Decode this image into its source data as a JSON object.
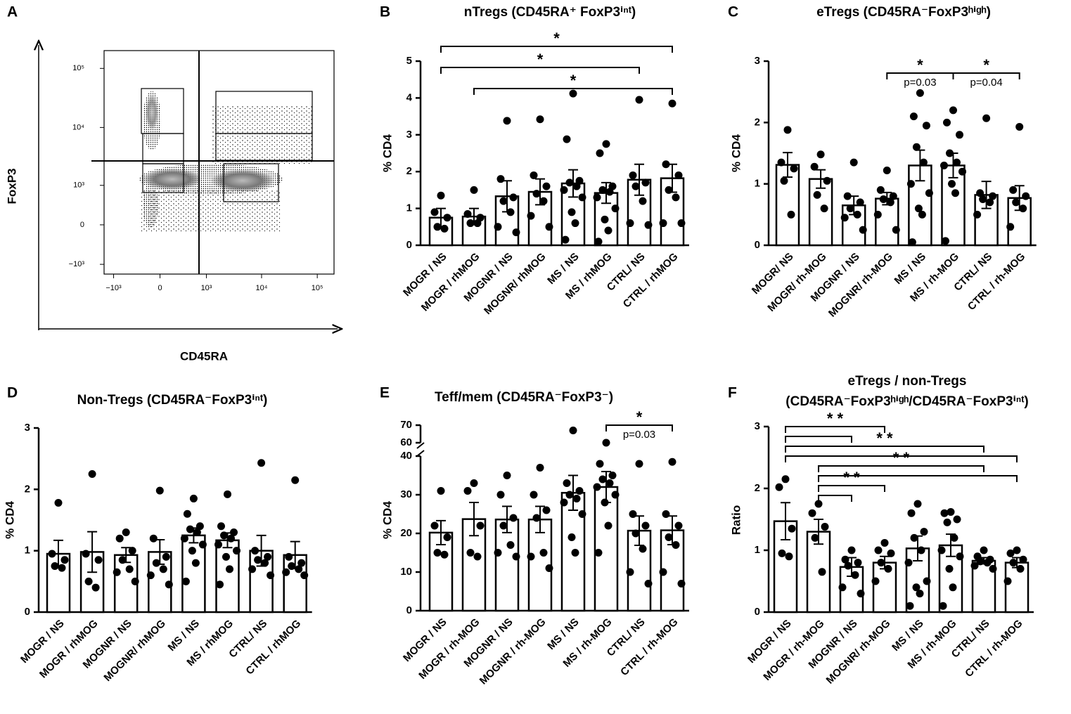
{
  "chart_data": [
    {
      "type": "density",
      "panel": "A",
      "xlabel": "CD45RA",
      "ylabel": "FoxP3",
      "xscale": "biexponential",
      "yscale": "biexponential",
      "xlim": [
        -1500,
        200000
      ],
      "ylim": [
        -1500,
        200000
      ],
      "xticks": [
        {
          "value": -1000,
          "label": "−10³"
        },
        0,
        {
          "value": 1000,
          "label": "10³"
        },
        {
          "value": 10000,
          "label": "10⁴"
        },
        {
          "value": 100000,
          "label": "10⁵"
        }
      ],
      "yticks": [
        {
          "value": -1000,
          "label": "−10³"
        },
        0,
        {
          "value": 1000,
          "label": "10³"
        },
        {
          "value": 10000,
          "label": "10⁴"
        },
        {
          "value": 100000,
          "label": "10⁵"
        }
      ]
    },
    {
      "type": "bar",
      "panel": "B",
      "title": "nTregs (CD45RA⁺ FoxP3ⁱⁿᵗ)",
      "ylabel": "% CD4",
      "categories": [
        "MOGR / NS",
        "MOGR / rhMOG",
        "MOGNR / NS",
        "MOGNR/ rhMOG",
        "MS / NS",
        "MS / rhMOG",
        "CTRL/ NS",
        "CTRL / rhMOG"
      ],
      "values": [
        0.75,
        0.78,
        1.33,
        1.45,
        1.68,
        1.42,
        1.78,
        1.82
      ],
      "errors": [
        0.25,
        0.22,
        0.42,
        0.35,
        0.37,
        0.28,
        0.42,
        0.38
      ],
      "points": [
        [
          1.35,
          0.9,
          0.75,
          0.5,
          0.45
        ],
        [
          1.5,
          0.85,
          0.75,
          0.6,
          0.6
        ],
        [
          3.38,
          1.8,
          1.3,
          1.2,
          0.9,
          0.5,
          0.35
        ],
        [
          3.42,
          1.9,
          1.6,
          1.4,
          1.2,
          0.8,
          0.5
        ],
        [
          4.12,
          2.88,
          1.75,
          1.7,
          1.6,
          1.5,
          1.3,
          0.9,
          0.6,
          0.15
        ],
        [
          2.75,
          2.5,
          1.6,
          1.5,
          1.45,
          1.3,
          1.0,
          0.7,
          0.4,
          0.1
        ],
        [
          3.95,
          1.9,
          1.7,
          1.6,
          1.2,
          0.6,
          0.55
        ],
        [
          3.85,
          2.2,
          1.9,
          1.5,
          1.3,
          0.6,
          0.6
        ]
      ],
      "ylim": [
        0,
        5
      ],
      "yticks": [
        0,
        1,
        2,
        3,
        4,
        5
      ],
      "brackets": [
        {
          "from": 0,
          "to": 7,
          "label": "*"
        },
        {
          "from": 0,
          "to": 6,
          "label": "*"
        },
        {
          "from": 1,
          "to": 7,
          "label": "*"
        }
      ]
    },
    {
      "type": "bar",
      "panel": "C",
      "title": "eTregs (CD45RA⁻FoxP3ʰⁱᵍʰ)",
      "ylabel": "% CD4",
      "categories": [
        "MOGR/ NS",
        "MOGR/ rh-MOG",
        "MOGNR / NS",
        "MOGNR/ rh-MOG",
        "MS / NS",
        "MS / rh-MOG",
        "CTRL/ NS",
        "CTRL / rh-MOG"
      ],
      "values": [
        1.31,
        1.08,
        0.65,
        0.76,
        1.3,
        1.3,
        0.82,
        0.77
      ],
      "errors": [
        0.2,
        0.15,
        0.15,
        0.1,
        0.25,
        0.2,
        0.22,
        0.2
      ],
      "points": [
        [
          1.88,
          1.35,
          1.25,
          1.05,
          0.5
        ],
        [
          1.48,
          1.28,
          1.05,
          0.82,
          0.6
        ],
        [
          1.35,
          0.8,
          0.7,
          0.6,
          0.5,
          0.45,
          0.25
        ],
        [
          1.22,
          0.9,
          0.8,
          0.75,
          0.7,
          0.5,
          0.25
        ],
        [
          2.48,
          2.1,
          1.95,
          1.6,
          1.35,
          1.0,
          0.85,
          0.6,
          0.5,
          0.05
        ],
        [
          2.2,
          2.0,
          1.8,
          1.5,
          1.35,
          1.3,
          1.2,
          1.0,
          0.85,
          0.07
        ],
        [
          2.07,
          0.85,
          0.8,
          0.75,
          0.7,
          0.5
        ],
        [
          1.93,
          0.9,
          0.8,
          0.7,
          0.6,
          0.3
        ]
      ],
      "ylim": [
        0,
        3
      ],
      "yticks": [
        0,
        1,
        2,
        3
      ],
      "brackets": [
        {
          "from": 3,
          "to": 5,
          "label": "*",
          "p": "p=0.03"
        },
        {
          "from": 5,
          "to": 7,
          "label": "*",
          "p": "p=0.04"
        }
      ]
    },
    {
      "type": "bar",
      "panel": "D",
      "title": "Non-Tregs (CD45RA⁻FoxP3ⁱⁿᵗ)",
      "ylabel": "% CD4",
      "categories": [
        "MOGR / NS",
        "MOGR / rhMOG",
        "MOGNR / NS",
        "MOGNR/ rhMOG",
        "MS / NS",
        "MS / rhMOG",
        "CTRL/ NS",
        "CTRL / rhMOG"
      ],
      "values": [
        0.95,
        0.98,
        0.93,
        0.98,
        1.25,
        1.17,
        1.0,
        0.93
      ],
      "errors": [
        0.22,
        0.33,
        0.12,
        0.2,
        0.12,
        0.12,
        0.25,
        0.22
      ],
      "points": [
        [
          1.78,
          0.95,
          0.85,
          0.75,
          0.72
        ],
        [
          2.25,
          0.95,
          0.85,
          0.5,
          0.4
        ],
        [
          1.3,
          1.2,
          1.0,
          0.85,
          0.7,
          0.65,
          0.5
        ],
        [
          1.98,
          1.2,
          0.9,
          0.8,
          0.7,
          0.6,
          0.45
        ],
        [
          1.85,
          1.6,
          1.4,
          1.35,
          1.3,
          1.2,
          1.1,
          1.0,
          0.8,
          0.5
        ],
        [
          1.92,
          1.4,
          1.3,
          1.25,
          1.2,
          1.1,
          1.0,
          0.9,
          0.7,
          0.45
        ],
        [
          2.43,
          1.0,
          0.9,
          0.85,
          0.8,
          0.7,
          0.6
        ],
        [
          2.15,
          0.9,
          0.8,
          0.75,
          0.7,
          0.65,
          0.6
        ]
      ],
      "ylim": [
        0,
        3
      ],
      "yticks": [
        0,
        1,
        2,
        3
      ]
    },
    {
      "type": "bar",
      "panel": "E",
      "title": "Teff/mem (CD45RA⁻FoxP3⁻)",
      "ylabel": "% CD4",
      "categories": [
        "MOGR / NS",
        "MOGR / rh-MOG",
        "MOGNR / NS",
        "MOGNR / rh-MOG",
        "MS / NS",
        "MS / rh-MOG",
        "CTRL/ NS",
        "CTRL / rh-MOG"
      ],
      "values": [
        20.2,
        23.7,
        23.6,
        23.6,
        30.5,
        32,
        20.7,
        20.8
      ],
      "errors": [
        3.1,
        4.3,
        3.4,
        3.4,
        4.5,
        4,
        3.8,
        3.7
      ],
      "points": [
        [
          31,
          22,
          19,
          15,
          14.5
        ],
        [
          33,
          31,
          22,
          15,
          14
        ],
        [
          35,
          30,
          24,
          22,
          17,
          15,
          14
        ],
        [
          37,
          30,
          26,
          24,
          15,
          14,
          11
        ],
        [
          67,
          33,
          31,
          30,
          29,
          28,
          25,
          19,
          15
        ],
        [
          60,
          38,
          35,
          34,
          33,
          32,
          30,
          28,
          22,
          15
        ],
        [
          38,
          25,
          22,
          20,
          16,
          10,
          7
        ],
        [
          38.5,
          25,
          22,
          19,
          17,
          10,
          7
        ]
      ],
      "ylim": [
        0,
        70
      ],
      "ybreak": [
        40,
        60
      ],
      "yticks": [
        0,
        10,
        20,
        30,
        40,
        60,
        70
      ],
      "brackets": [
        {
          "from": 5,
          "to": 7,
          "label": "*",
          "p": "p=0.03"
        }
      ]
    },
    {
      "type": "bar",
      "panel": "F",
      "title": [
        "eTregs / non-Tregs",
        "(CD45RA⁻FoxP3ʰⁱᵍʰ/CD45RA⁻FoxP3ⁱⁿᵗ)"
      ],
      "ylabel": "Ratio",
      "categories": [
        "MOGR / NS",
        "MOGR / rh-MOG",
        "MOGNR / NS",
        "MOGNR/ rh-MOG",
        "MS / NS",
        "MS / rh-MOG",
        "CTRL/ NS",
        "CTRL / rh-MOG"
      ],
      "values": [
        1.47,
        1.3,
        0.73,
        0.8,
        1.03,
        1.08,
        0.83,
        0.8
      ],
      "errors": [
        0.3,
        0.2,
        0.15,
        0.1,
        0.2,
        0.18,
        0.05,
        0.08
      ],
      "points": [
        [
          2.15,
          2.02,
          1.35,
          0.95,
          0.9
        ],
        [
          1.75,
          1.6,
          1.38,
          1.2,
          0.65
        ],
        [
          1.0,
          0.85,
          0.8,
          0.75,
          0.6,
          0.4,
          0.3
        ],
        [
          1.12,
          1.0,
          0.95,
          0.8,
          0.7,
          0.5
        ],
        [
          1.75,
          1.6,
          1.3,
          1.2,
          1.0,
          0.8,
          0.5,
          0.4,
          0.3,
          0.1
        ],
        [
          1.62,
          1.6,
          1.5,
          1.45,
          1.2,
          1.0,
          0.9,
          0.7,
          0.4,
          0.1
        ],
        [
          1.0,
          0.9,
          0.85,
          0.82,
          0.8,
          0.75,
          0.7
        ],
        [
          1.0,
          0.95,
          0.85,
          0.8,
          0.7,
          0.5
        ]
      ],
      "ylim": [
        0,
        3
      ],
      "yticks": [
        0,
        1,
        2,
        3
      ],
      "brackets": [
        {
          "from": 0,
          "to": 3,
          "label": "* *"
        },
        {
          "from": 0,
          "to": 2
        },
        {
          "from": 0,
          "to": 6,
          "label": "* *"
        },
        {
          "from": 0,
          "to": 7
        },
        {
          "from": 1,
          "to": 6,
          "label": "* *"
        },
        {
          "from": 1,
          "to": 7
        },
        {
          "from": 1,
          "to": 3,
          "label": "* *"
        },
        {
          "from": 1,
          "to": 2
        }
      ]
    }
  ]
}
